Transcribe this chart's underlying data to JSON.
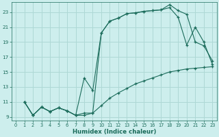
{
  "xlabel": "Humidex (Indice chaleur)",
  "bg_color": "#cdeeed",
  "grid_color": "#aed8d5",
  "line_color": "#1a6b5a",
  "xlim_min": -0.5,
  "xlim_max": 23.5,
  "ylim_min": 8.5,
  "ylim_max": 24.3,
  "xticks": [
    0,
    1,
    2,
    3,
    4,
    5,
    6,
    7,
    8,
    9,
    10,
    11,
    12,
    13,
    14,
    15,
    16,
    17,
    18,
    19,
    20,
    21,
    22,
    23
  ],
  "yticks": [
    9,
    11,
    13,
    15,
    17,
    19,
    21,
    23
  ],
  "line1_x": [
    1,
    2,
    3,
    4,
    5,
    6,
    7,
    8,
    9,
    10,
    11,
    12,
    13,
    14,
    15,
    16,
    17,
    18,
    19,
    20,
    21,
    22,
    23
  ],
  "line1_y": [
    11,
    9.2,
    10.3,
    9.7,
    10.2,
    9.8,
    9.2,
    9.2,
    9.5,
    10.5,
    11.5,
    12.2,
    12.8,
    13.4,
    13.8,
    14.2,
    14.6,
    15.0,
    15.2,
    15.4,
    15.5,
    15.6,
    15.7
  ],
  "line2_x": [
    1,
    2,
    3,
    4,
    5,
    6,
    7,
    8,
    9,
    10,
    11,
    12,
    13,
    14,
    15,
    16,
    17,
    18,
    19,
    20,
    21,
    22,
    23
  ],
  "line2_y": [
    11,
    9.2,
    10.3,
    9.7,
    10.2,
    9.8,
    9.2,
    14.2,
    12.5,
    20.2,
    21.8,
    22.2,
    22.8,
    22.9,
    23.1,
    23.2,
    23.3,
    23.6,
    22.3,
    18.6,
    21.0,
    19.0,
    16.0
  ],
  "line3_x": [
    1,
    2,
    3,
    4,
    5,
    6,
    7,
    8,
    9,
    10,
    11,
    12,
    13,
    14,
    15,
    16,
    17,
    18,
    19,
    20,
    21,
    22,
    23
  ],
  "line3_y": [
    11,
    9.2,
    10.3,
    9.7,
    10.2,
    9.8,
    9.2,
    9.5,
    9.5,
    20.2,
    21.8,
    22.2,
    22.8,
    22.9,
    23.1,
    23.2,
    23.3,
    24.0,
    23.2,
    22.7,
    19.0,
    18.5,
    16.5
  ]
}
